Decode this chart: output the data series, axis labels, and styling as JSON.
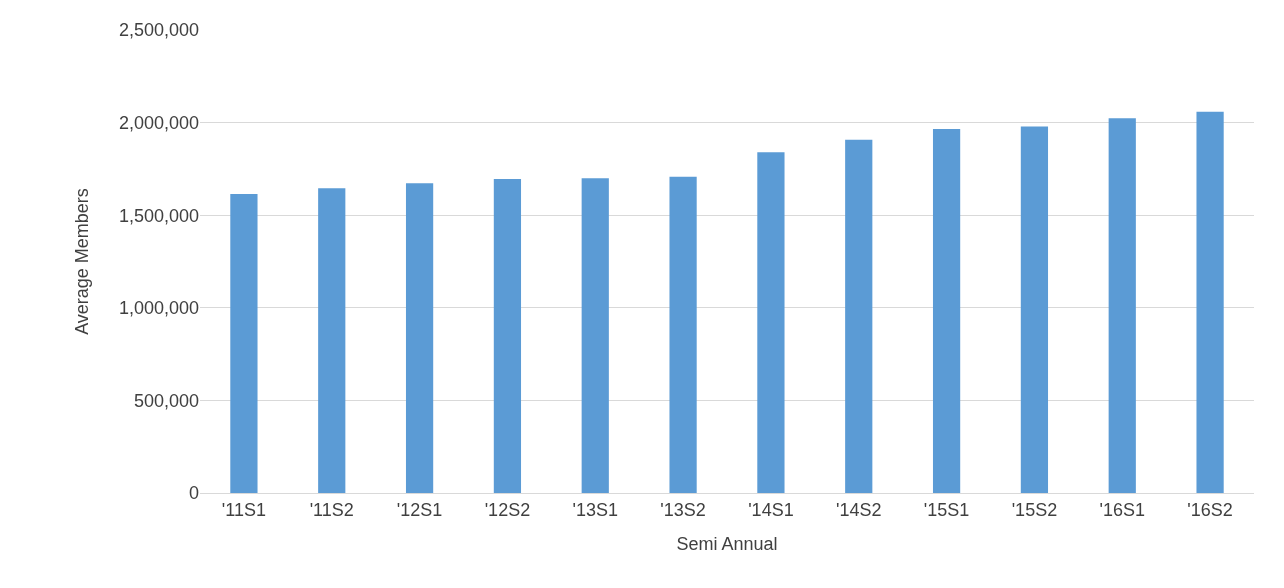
{
  "chart_data": {
    "type": "bar",
    "xlabel": "Semi Annual",
    "ylabel": "Average Members",
    "categories": [
      "'11S1",
      "'11S2",
      "'12S1",
      "'12S2",
      "'13S1",
      "'13S2",
      "'14S1",
      "'14S2",
      "'15S1",
      "'15S2",
      "'16S1",
      "'16S2"
    ],
    "values": [
      1614000,
      1645000,
      1672000,
      1695000,
      1699000,
      1707000,
      1840000,
      1907000,
      1965000,
      1979000,
      2023000,
      2058000
    ],
    "color": "#5b9bd5",
    "ylim": [
      0,
      2500000
    ],
    "yticks": [
      {
        "value": 0,
        "label": "0"
      },
      {
        "value": 500000,
        "label": "500,000"
      },
      {
        "value": 1000000,
        "label": "1,000,000"
      },
      {
        "value": 1500000,
        "label": "1,500,000"
      },
      {
        "value": 2000000,
        "label": "2,000,000"
      },
      {
        "value": 2500000,
        "label": "2,500,000"
      }
    ],
    "grid": "y"
  }
}
